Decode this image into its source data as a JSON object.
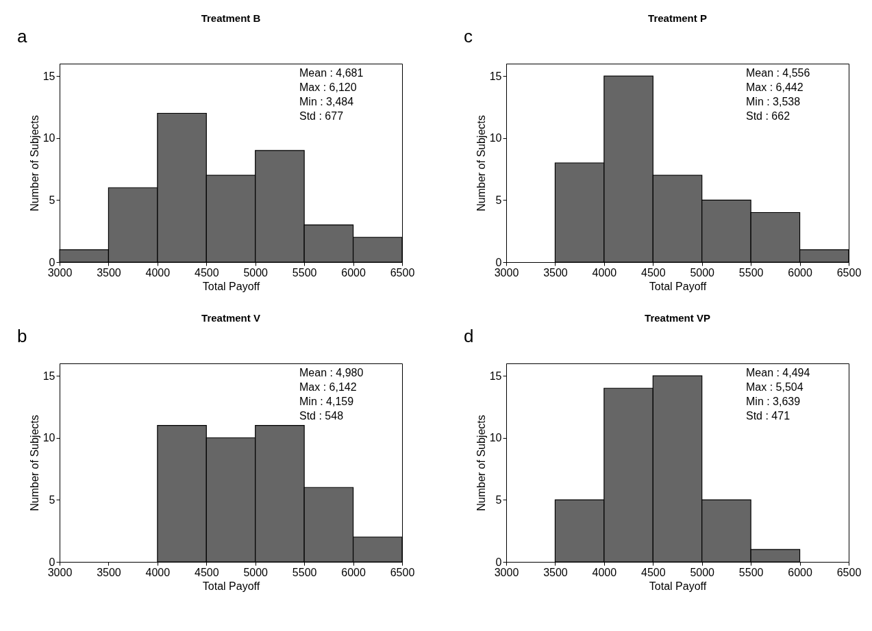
{
  "chart_data": [
    {
      "type": "histogram",
      "title": "Treatment B",
      "xlabel": "Total Payoff",
      "ylabel": "Number of Subjects",
      "bins": [
        3000,
        3500,
        4000,
        4500,
        5000,
        5500,
        6000,
        6500
      ],
      "values": [
        1,
        6,
        12,
        7,
        9,
        3,
        2
      ],
      "color": "#666666",
      "xlim": [
        3000,
        6500
      ],
      "xticks": [
        3000,
        3500,
        4000,
        4500,
        5000,
        5500,
        6000,
        6500
      ],
      "ylim": [
        0,
        16
      ],
      "yticks": [
        0,
        5,
        10,
        15
      ],
      "annotations": [
        "a",
        "Mean : 4,681",
        "Max   : 6,120",
        "Min    : 3,484",
        "Std    : 677"
      ]
    },
    {
      "type": "histogram",
      "title": "Treatment P",
      "xlabel": "Total Payoff",
      "ylabel": "Number of Subjects",
      "bins": [
        3000,
        3500,
        4000,
        4500,
        5000,
        5500,
        6000,
        6500
      ],
      "values": [
        0,
        8,
        15,
        7,
        5,
        4,
        1
      ],
      "color": "#666666",
      "xlim": [
        3000,
        6500
      ],
      "xticks": [
        3000,
        3500,
        4000,
        4500,
        5000,
        5500,
        6000,
        6500
      ],
      "ylim": [
        0,
        16
      ],
      "yticks": [
        0,
        5,
        10,
        15
      ],
      "annotations": [
        "c",
        "Mean : 4,556",
        "Max   : 6,442",
        "Min    : 3,538",
        "Std    : 662"
      ]
    },
    {
      "type": "histogram",
      "title": "Treatment V",
      "xlabel": "Total Payoff",
      "ylabel": "Number of Subjects",
      "bins": [
        3000,
        3500,
        4000,
        4500,
        5000,
        5500,
        6000,
        6500
      ],
      "values": [
        0,
        0,
        11,
        10,
        11,
        6,
        2
      ],
      "color": "#666666",
      "xlim": [
        3000,
        6500
      ],
      "xticks": [
        3000,
        3500,
        4000,
        4500,
        5000,
        5500,
        6000,
        6500
      ],
      "ylim": [
        0,
        16
      ],
      "yticks": [
        0,
        5,
        10,
        15
      ],
      "annotations": [
        "b",
        "Mean : 4,980",
        "Max   : 6,142",
        "Min    : 4,159",
        "Std    : 548"
      ]
    },
    {
      "type": "histogram",
      "title": "Treatment VP",
      "xlabel": "Total Payoff",
      "ylabel": "Number of Subjects",
      "bins": [
        3000,
        3500,
        4000,
        4500,
        5000,
        5500,
        6000,
        6500
      ],
      "values": [
        0,
        5,
        14,
        15,
        5,
        1,
        0
      ],
      "color": "#666666",
      "xlim": [
        3000,
        6500
      ],
      "xticks": [
        3000,
        3500,
        4000,
        4500,
        5000,
        5500,
        6000,
        6500
      ],
      "ylim": [
        0,
        16
      ],
      "yticks": [
        0,
        5,
        10,
        15
      ],
      "annotations": [
        "d",
        "Mean : 4,494",
        "Max   : 5,504",
        "Min    : 3,639",
        "Std    : 471"
      ]
    }
  ]
}
